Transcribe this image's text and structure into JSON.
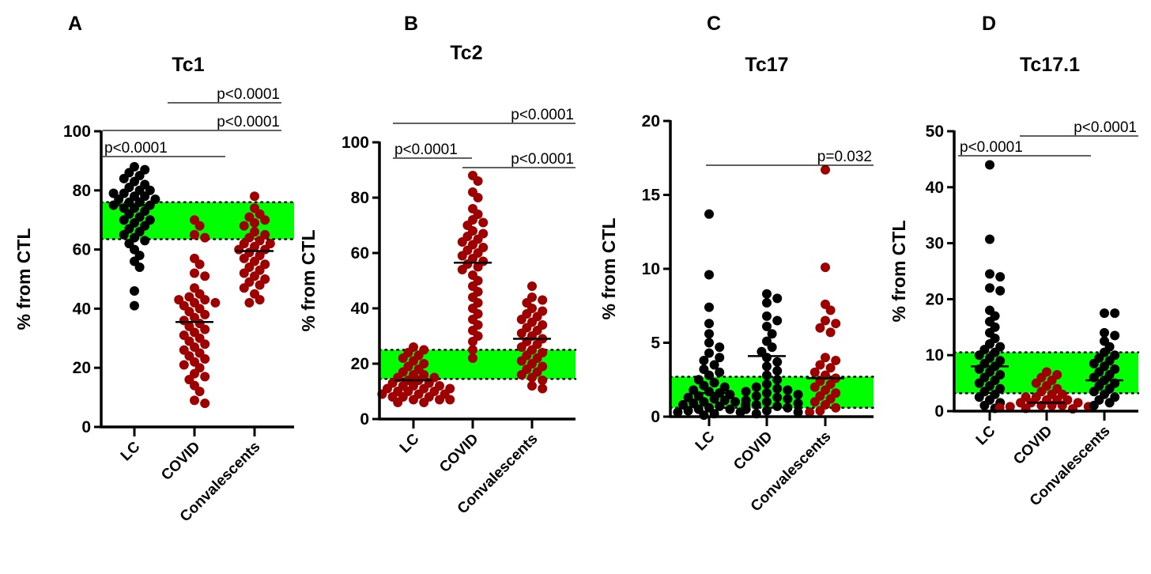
{
  "chart_data": [
    {
      "type": "scatter",
      "panel_letter": "A",
      "title": "Tc1",
      "ylabel": "% from CTL",
      "ylim": [
        0,
        100
      ],
      "yticks": [
        0,
        20,
        40,
        60,
        80,
        100
      ],
      "categories": [
        "LC",
        "COVID",
        "Convalescents"
      ],
      "reference_band": [
        63.5,
        76
      ],
      "series": [
        {
          "name": "LC",
          "color": "#000000",
          "mean": 75,
          "values": [
            88,
            87,
            86,
            85,
            84,
            83,
            82,
            81,
            80,
            80,
            79,
            79,
            78,
            78,
            77,
            77,
            76,
            76,
            75,
            75,
            74,
            74,
            73,
            72,
            71,
            70,
            70,
            69,
            68,
            67,
            66,
            65,
            64,
            63,
            62,
            60,
            58,
            56,
            54,
            46,
            41
          ]
        },
        {
          "name": "COVID",
          "color": "#9e0000",
          "mean": 35.5,
          "values": [
            70,
            68,
            65,
            64,
            57,
            55,
            52,
            51,
            47,
            45,
            44,
            43,
            43,
            42,
            42,
            41,
            40,
            39,
            38,
            37,
            36,
            35,
            34,
            33,
            32,
            31,
            30,
            29,
            28,
            27,
            26,
            25,
            24,
            23,
            22,
            21,
            20,
            18,
            17,
            16,
            14,
            12,
            9,
            8
          ]
        },
        {
          "name": "Convalescents",
          "color": "#9e0000",
          "mean": 59.5,
          "values": [
            78,
            74,
            72,
            71,
            70,
            69,
            68,
            66,
            65,
            64,
            63,
            62,
            62,
            61,
            60,
            60,
            59,
            58,
            57,
            56,
            55,
            54,
            53,
            52,
            51,
            50,
            49,
            48,
            47,
            45,
            43,
            42
          ]
        }
      ],
      "comparisons": [
        {
          "from": 0,
          "to": 1,
          "label": "p<0.0001"
        },
        {
          "from": 0,
          "to": 2,
          "label": "p<0.0001"
        },
        {
          "from": 1,
          "to": 2,
          "label": "p<0.0001"
        }
      ]
    },
    {
      "type": "scatter",
      "panel_letter": "B",
      "title": "Tc2",
      "ylabel": "% from CTL",
      "ylim": [
        0,
        100
      ],
      "yticks": [
        0,
        20,
        40,
        60,
        80,
        100
      ],
      "categories": [
        "LC",
        "COVID",
        "Convalescents"
      ],
      "reference_band": [
        14.5,
        25
      ],
      "series": [
        {
          "name": "LC",
          "color": "#9e0000",
          "mean": 14,
          "values": [
            26,
            25,
            24,
            23,
            22,
            21,
            20,
            19,
            18,
            17,
            16,
            16,
            15,
            15,
            14,
            14,
            13,
            13,
            12,
            12,
            12,
            11,
            11,
            11,
            10,
            10,
            10,
            9,
            9,
            9,
            8,
            8,
            8,
            7,
            7,
            7,
            6,
            6
          ]
        },
        {
          "name": "COVID",
          "color": "#9e0000",
          "mean": 56.5,
          "values": [
            88,
            86,
            82,
            80,
            76,
            74,
            72,
            71,
            70,
            68,
            67,
            66,
            65,
            64,
            63,
            62,
            61,
            60,
            59,
            58,
            57,
            56,
            55,
            54,
            52,
            50,
            48,
            46,
            44,
            42,
            40,
            38,
            36,
            34,
            32,
            30,
            28,
            25,
            22
          ]
        },
        {
          "name": "Convalescents",
          "color": "#9e0000",
          "mean": 29,
          "values": [
            48,
            44,
            43,
            42,
            40,
            39,
            38,
            37,
            36,
            35,
            34,
            33,
            32,
            31,
            30,
            29,
            28,
            27,
            26,
            25,
            24,
            23,
            22,
            21,
            20,
            19,
            18,
            17,
            16,
            15,
            14,
            12,
            11
          ]
        }
      ],
      "comparisons": [
        {
          "from": 0,
          "to": 1,
          "label": "p<0.0001"
        },
        {
          "from": 1,
          "to": 2,
          "label": "p<0.0001"
        },
        {
          "from": 0,
          "to": 2,
          "label": "p<0.0001"
        }
      ]
    },
    {
      "type": "scatter",
      "panel_letter": "C",
      "title": "Tc17",
      "ylabel": "% from CTL",
      "ylim": [
        0,
        20
      ],
      "yticks": [
        0,
        5,
        10,
        15,
        20
      ],
      "categories": [
        "LC",
        "COVID",
        "Convalescents"
      ],
      "reference_band": [
        0.6,
        2.7
      ],
      "series": [
        {
          "name": "LC",
          "color": "#000000",
          "mean": 1.6,
          "values": [
            13.7,
            9.6,
            7.4,
            6.3,
            5.6,
            5.0,
            4.7,
            4.3,
            4.0,
            3.8,
            3.5,
            3.2,
            3.0,
            2.8,
            2.5,
            2.3,
            2.1,
            2.0,
            1.8,
            1.7,
            1.6,
            1.5,
            1.4,
            1.3,
            1.2,
            1.1,
            1.0,
            1.0,
            0.9,
            0.8,
            0.8,
            0.7,
            0.6,
            0.5,
            0.5,
            0.4,
            0.3,
            0.3,
            0.2,
            0.1
          ]
        },
        {
          "name": "COVID",
          "color": "#000000",
          "mean": 4.1,
          "values": [
            8.3,
            8.0,
            7.7,
            6.8,
            6.5,
            6.1,
            5.6,
            5.1,
            4.7,
            4.4,
            4.0,
            3.7,
            3.4,
            3.1,
            2.8,
            2.5,
            2.2,
            2.0,
            1.9,
            1.8,
            1.7,
            1.6,
            1.5,
            1.4,
            1.3,
            1.2,
            1.1,
            1.0,
            0.9,
            0.8,
            0.7,
            0.6,
            0.5,
            0.4,
            0.3,
            0.2
          ]
        },
        {
          "name": "Convalescents",
          "color": "#9e0000",
          "mean": 2.6,
          "values": [
            16.7,
            10.1,
            7.6,
            7.2,
            6.5,
            6.3,
            6.0,
            5.7,
            4.0,
            3.8,
            3.5,
            3.3,
            3.0,
            2.8,
            2.6,
            2.4,
            2.2,
            2.0,
            1.8,
            1.6,
            1.4,
            1.2,
            1.0,
            0.8,
            0.6,
            0.4,
            0.3
          ]
        }
      ],
      "comparisons": [
        {
          "from": 0,
          "to": 2,
          "label": "p=0.032"
        }
      ]
    },
    {
      "type": "scatter",
      "panel_letter": "D",
      "title": "Tc17.1",
      "ylabel": "% from CTL",
      "ylim": [
        0,
        50
      ],
      "yticks": [
        0,
        10,
        20,
        30,
        40,
        50
      ],
      "categories": [
        "LC",
        "COVID",
        "Convalescents"
      ],
      "reference_band": [
        3.2,
        10.5
      ],
      "series": [
        {
          "name": "LC",
          "color": "#000000",
          "mean": 8,
          "values": [
            44,
            30.7,
            24.5,
            24,
            22,
            21.5,
            18,
            17,
            16,
            15,
            14,
            13,
            12,
            11.5,
            11,
            10.5,
            10,
            9.5,
            9,
            8.5,
            8,
            7.5,
            7,
            6.5,
            6,
            5.5,
            5,
            4.5,
            4,
            3.5,
            3,
            2.5,
            2,
            1.5,
            1,
            0.5
          ]
        },
        {
          "name": "COVID",
          "color": "#9e0000",
          "mean": 1.5,
          "values": [
            7,
            6.5,
            6,
            5.5,
            5,
            4.5,
            4,
            3.5,
            3,
            3,
            2.5,
            2.5,
            2,
            2,
            2,
            1.5,
            1.5,
            1.5,
            1,
            1,
            1,
            0.8,
            0.8,
            0.6,
            0.5,
            0.4
          ]
        },
        {
          "name": "Convalescents",
          "color": "#000000",
          "mean": 5.5,
          "values": [
            17.5,
            17.5,
            14,
            13.5,
            12.5,
            11.5,
            10.5,
            10,
            9.5,
            9,
            8.5,
            8,
            7.5,
            7,
            6.5,
            6,
            5.5,
            5,
            4.5,
            4,
            3.5,
            3,
            2.5,
            2,
            1.5,
            1
          ]
        }
      ],
      "comparisons": [
        {
          "from": 0,
          "to": 1,
          "label": "p<0.0001"
        },
        {
          "from": 1,
          "to": 2,
          "label": "p<0.0001"
        }
      ]
    }
  ],
  "band_color": "#00ff00"
}
